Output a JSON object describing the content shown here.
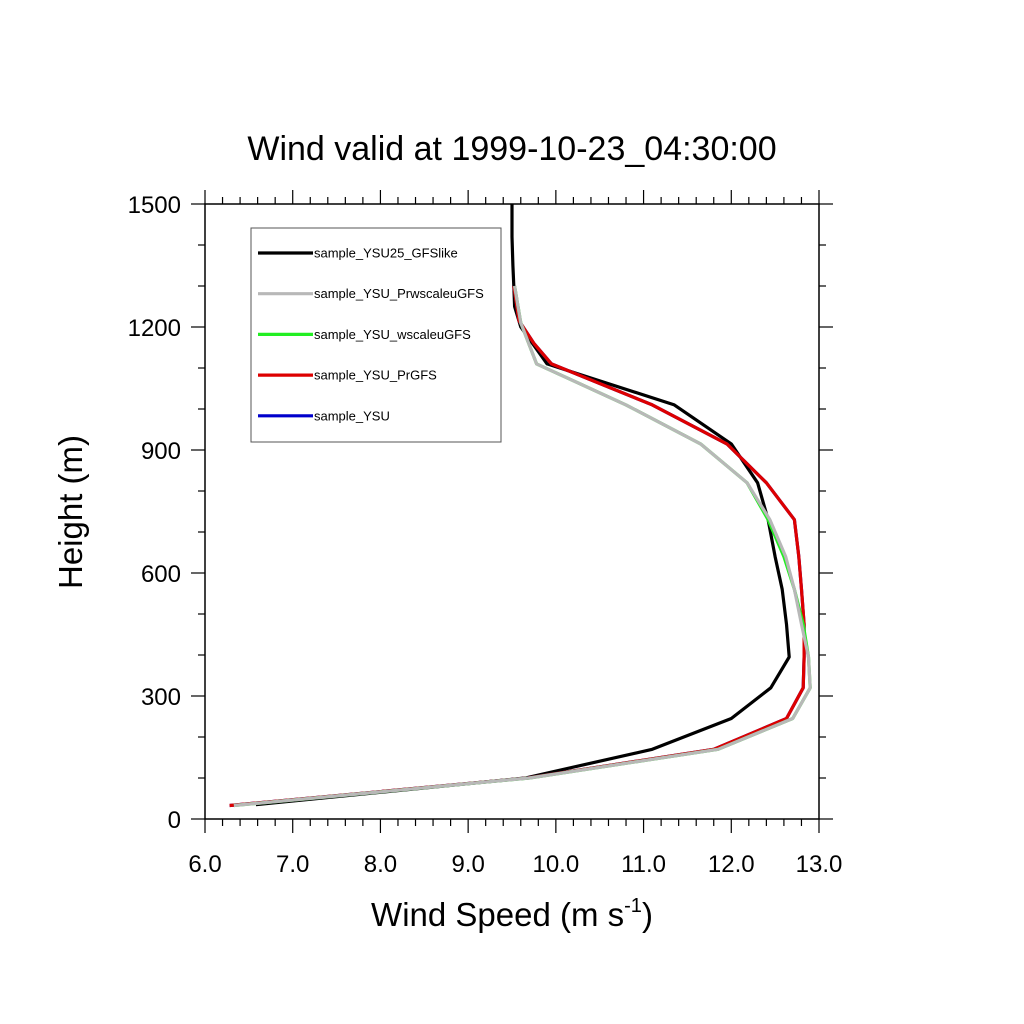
{
  "chart_data": {
    "type": "line",
    "title": "Wind valid at 1999-10-23_04:30:00",
    "xlabel": "Wind Speed (m s",
    "xlabel_superscript": "-1",
    "xlabel_suffix": ")",
    "ylabel": "Height (m)",
    "xlim": [
      6.0,
      13.0
    ],
    "ylim": [
      0,
      1500
    ],
    "xticks": [
      6.0,
      7.0,
      8.0,
      9.0,
      10.0,
      11.0,
      12.0,
      13.0
    ],
    "xtick_labels": [
      "6.0",
      "7.0",
      "8.0",
      "9.0",
      "10.0",
      "11.0",
      "12.0",
      "13.0"
    ],
    "yticks": [
      0,
      300,
      600,
      900,
      1200,
      1500
    ],
    "ytick_labels": [
      "0",
      "300",
      "600",
      "900",
      "1200",
      "1500"
    ],
    "grid": false,
    "legend_position": "top-left",
    "series": [
      {
        "name": "sample_YSU25_GFSlike",
        "color": "#000000",
        "x": [
          6.58,
          9.65,
          11.1,
          12.0,
          12.45,
          12.66,
          12.63,
          12.58,
          12.5,
          12.42,
          12.3,
          12.0,
          11.35,
          9.9,
          9.6,
          9.53,
          9.52,
          9.51,
          9.5,
          9.5
        ],
        "y": [
          35,
          100,
          170,
          245,
          320,
          395,
          475,
          560,
          640,
          730,
          820,
          915,
          1010,
          1110,
          1200,
          1250,
          1300,
          1350,
          1420,
          1500
        ]
      },
      {
        "name": "sample_YSU",
        "color": "#0000cc",
        "x": [
          6.28,
          9.68,
          11.8,
          12.63,
          12.82,
          12.83,
          12.83,
          12.8,
          12.77,
          12.72,
          12.4,
          11.95,
          11.1,
          9.95,
          9.75,
          9.58,
          9.52
        ],
        "y": [
          33,
          100,
          170,
          245,
          320,
          395,
          475,
          560,
          640,
          730,
          820,
          915,
          1010,
          1110,
          1160,
          1215,
          1300
        ]
      },
      {
        "name": "sample_YSU_PrGFS",
        "color": "#dd0000",
        "x": [
          6.28,
          9.68,
          11.8,
          12.63,
          12.82,
          12.83,
          12.83,
          12.8,
          12.77,
          12.72,
          12.4,
          11.95,
          11.1,
          9.95,
          9.75,
          9.58,
          9.52
        ],
        "y": [
          33,
          100,
          170,
          245,
          320,
          395,
          475,
          560,
          640,
          730,
          820,
          915,
          1010,
          1110,
          1160,
          1215,
          1300
        ]
      },
      {
        "name": "sample_YSU_wscaleuGFS",
        "color": "#22ee22",
        "x": [
          6.33,
          9.7,
          11.85,
          12.7,
          12.9,
          12.88,
          12.82,
          12.72,
          12.6,
          12.42,
          12.18,
          11.65,
          10.8,
          9.78,
          9.6,
          9.53
        ],
        "y": [
          33,
          100,
          170,
          245,
          320,
          395,
          475,
          560,
          640,
          730,
          820,
          915,
          1010,
          1110,
          1210,
          1300
        ]
      },
      {
        "name": "sample_YSU_PrwscaleuGFS",
        "color": "#b8b8b8",
        "x": [
          6.33,
          9.7,
          11.85,
          12.7,
          12.9,
          12.88,
          12.8,
          12.72,
          12.62,
          12.44,
          12.18,
          11.65,
          10.8,
          9.78,
          9.6,
          9.53
        ],
        "y": [
          33,
          100,
          170,
          245,
          320,
          395,
          475,
          560,
          640,
          730,
          820,
          915,
          1010,
          1110,
          1210,
          1300
        ]
      }
    ],
    "legend": [
      {
        "label": "sample_YSU25_GFSlike",
        "color": "#000000"
      },
      {
        "label": "sample_YSU_PrwscaleuGFS",
        "color": "#b8b8b8"
      },
      {
        "label": "sample_YSU_wscaleuGFS",
        "color": "#22ee22"
      },
      {
        "label": "sample_YSU_PrGFS",
        "color": "#dd0000"
      },
      {
        "label": "sample_YSU",
        "color": "#0000cc"
      }
    ]
  }
}
